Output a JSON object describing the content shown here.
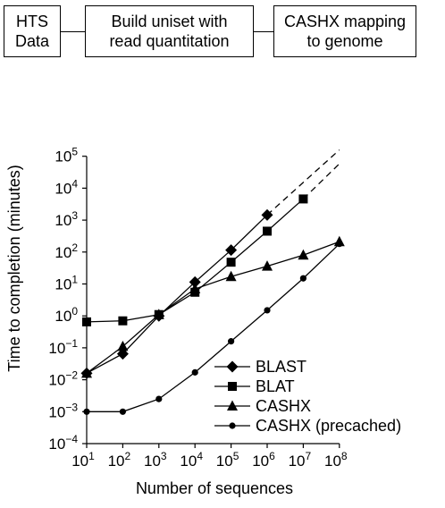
{
  "flowchart": {
    "steps": [
      {
        "lines": [
          "HTS",
          "Data"
        ]
      },
      {
        "lines": [
          "Build uniset with",
          "read quantitation"
        ]
      },
      {
        "lines": [
          "CASHX mapping",
          "to genome"
        ]
      }
    ]
  },
  "chart_data": {
    "type": "line",
    "xscale": "log",
    "yscale": "log",
    "xlabel": "Number of sequences",
    "ylabel": "Time to completion (minutes)",
    "xlim": [
      10,
      100000000
    ],
    "ylim": [
      0.0001,
      100000
    ],
    "x_tick_exponents": [
      1,
      2,
      3,
      4,
      5,
      6,
      7,
      8
    ],
    "y_tick_exponents": [
      -4,
      -3,
      -2,
      -1,
      0,
      1,
      2,
      3,
      4,
      5
    ],
    "tick_base": "10",
    "grid": false,
    "legend_position": "bottom-right",
    "series": [
      {
        "name": "BLAST",
        "marker": "diamond",
        "x": [
          10,
          100,
          1000,
          10000,
          100000,
          1000000
        ],
        "y": [
          0.016,
          0.065,
          1.0,
          11.5,
          115,
          1450
        ],
        "extrapolation": {
          "x": [
            1000000,
            100000000
          ],
          "y": [
            1450,
            158000
          ]
        }
      },
      {
        "name": "BLAT",
        "marker": "square",
        "x": [
          10,
          100,
          1000,
          10000,
          100000,
          1000000,
          10000000
        ],
        "y": [
          0.65,
          0.7,
          1.1,
          5.5,
          48,
          450,
          4600
        ],
        "extrapolation": {
          "x": [
            10000000,
            100000000
          ],
          "y": [
            4600,
            58000
          ]
        }
      },
      {
        "name": "CASHX",
        "marker": "triangle",
        "x": [
          10,
          100,
          1000,
          10000,
          100000,
          1000000,
          10000000,
          100000000
        ],
        "y": [
          0.016,
          0.11,
          1.1,
          7.0,
          17,
          36,
          80,
          210
        ]
      },
      {
        "name": "CASHX (precached)",
        "marker": "circle",
        "x": [
          10,
          100,
          1000,
          10000,
          100000,
          1000000,
          10000000,
          100000000
        ],
        "y": [
          0.001,
          0.001,
          0.0025,
          0.017,
          0.16,
          1.5,
          15,
          180
        ]
      }
    ]
  }
}
